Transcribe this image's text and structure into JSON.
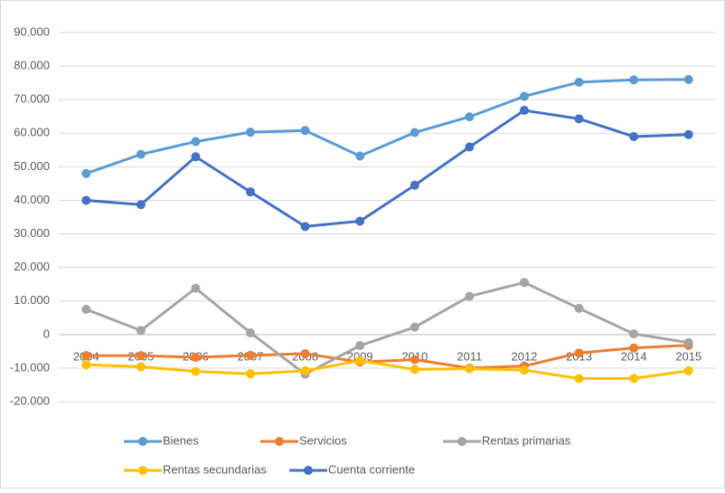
{
  "chart_data": {
    "type": "line",
    "categories": [
      "2004",
      "2005",
      "2006",
      "2007",
      "2008",
      "2009",
      "2010",
      "2011",
      "2012",
      "2013",
      "2014",
      "2015"
    ],
    "series": [
      {
        "name": "Bienes",
        "color": "#5b9bd5",
        "values": [
          48000,
          53700,
          57500,
          60300,
          60800,
          53200,
          60200,
          64900,
          71000,
          75200,
          75900,
          76000
        ]
      },
      {
        "name": "Servicios",
        "color": "#ed7d31",
        "values": [
          -6300,
          -6300,
          -6800,
          -6200,
          -5700,
          -8200,
          -7500,
          -10000,
          -9400,
          -5500,
          -4000,
          -3200
        ]
      },
      {
        "name": "Rentas primarias",
        "color": "#a5a5a5",
        "values": [
          7500,
          1200,
          13800,
          500,
          -11800,
          -3300,
          2200,
          11400,
          15500,
          7800,
          200,
          -2400
        ]
      },
      {
        "name": "Rentas secundarias",
        "color": "#ffc000",
        "values": [
          -9000,
          -9600,
          -11000,
          -11700,
          -10800,
          -7800,
          -10400,
          -10200,
          -10600,
          -13100,
          -13100,
          -10800
        ]
      },
      {
        "name": "Cuenta corriente",
        "color": "#4472c4",
        "values": [
          40000,
          38700,
          53000,
          42500,
          32200,
          33800,
          44500,
          55900,
          66800,
          64300,
          59000,
          59600
        ]
      }
    ],
    "ylim": [
      -20000,
      90000
    ],
    "yticks": [
      {
        "value": -20000,
        "label": "-20.000"
      },
      {
        "value": -10000,
        "label": "-10.000"
      },
      0,
      {
        "value": 10000,
        "label": "10.000"
      },
      {
        "value": 20000,
        "label": "20.000"
      },
      {
        "value": 30000,
        "label": "30.000"
      },
      {
        "value": 40000,
        "label": "40.000"
      },
      {
        "value": 50000,
        "label": "50.000"
      },
      {
        "value": 60000,
        "label": "60.000"
      },
      {
        "value": 70000,
        "label": "70.000"
      },
      {
        "value": 80000,
        "label": "80.000"
      },
      {
        "value": 90000,
        "label": "90.000"
      }
    ],
    "grid": true,
    "legend": "bottom"
  }
}
